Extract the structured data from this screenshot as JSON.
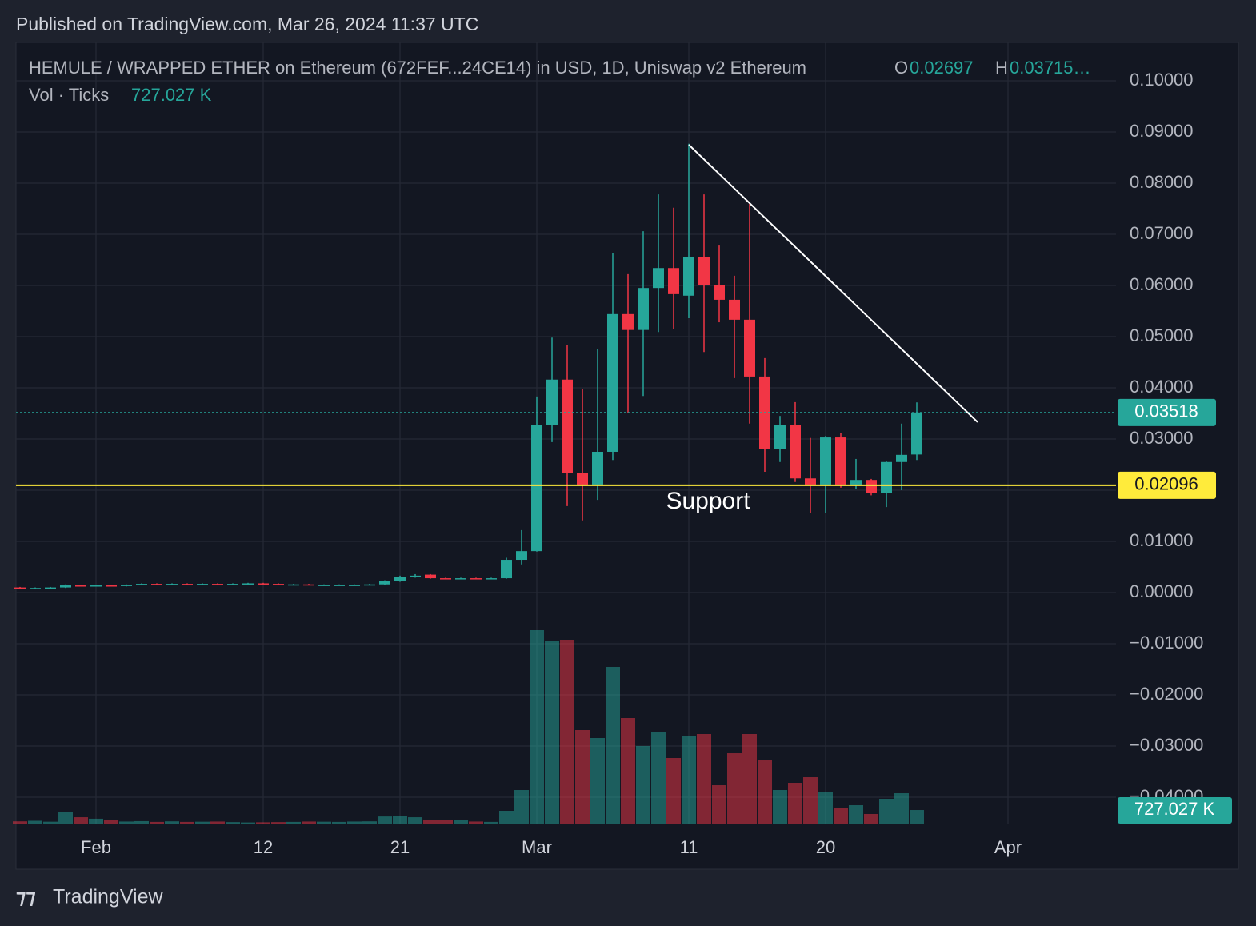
{
  "header": {
    "published": "Published on TradingView.com, Mar 26, 2024 11:37 UTC",
    "symbol": "HEMULE / WRAPPED ETHER on Ethereum (672FEF...24CE14) in USD, 1D, Uniswap v2 Ethereum",
    "o_key": "O",
    "o_value": "0.02697",
    "h_key": "H",
    "h_value": "0.03715…",
    "volume_key": "Vol · Ticks",
    "volume_value": "727.027 K"
  },
  "footer": {
    "brand": "TradingView"
  },
  "chart_data": {
    "type": "candlestick",
    "categories": [
      null,
      null,
      null,
      null,
      null,
      "Feb",
      null,
      null,
      null,
      null,
      null,
      null,
      null,
      null,
      null,
      null,
      "12",
      null,
      null,
      null,
      null,
      null,
      null,
      null,
      null,
      "21",
      null,
      null,
      null,
      null,
      null,
      null,
      null,
      null,
      "Mar",
      null,
      null,
      null,
      null,
      null,
      null,
      null,
      null,
      null,
      "11",
      null,
      null,
      null,
      null,
      null,
      null,
      null,
      null,
      "20",
      null,
      null,
      null,
      null,
      null,
      null,
      null,
      null,
      null,
      null,
      null,
      "Apr"
    ],
    "open": [
      0.001,
      0.0009,
      0.0009,
      0.001,
      0.0014,
      0.0013,
      0.0014,
      0.0013,
      0.0015,
      0.0017,
      0.0016,
      0.0017,
      0.0016,
      0.0017,
      0.0016,
      0.0017,
      0.0018,
      0.0017,
      0.0016,
      0.0016,
      0.0015,
      0.0015,
      0.0015,
      0.0015,
      0.0016,
      0.0022,
      0.003,
      0.0035,
      0.0028,
      0.0027,
      0.0028,
      0.0027,
      0.0028,
      0.0064,
      0.0081,
      0.0327,
      0.0416,
      0.0233,
      0.0211,
      0.0275,
      0.0544,
      0.0513,
      0.0595,
      0.0634,
      0.058,
      0.0655,
      0.06,
      0.0572,
      0.0533,
      0.0422,
      0.028,
      0.0327,
      0.0223,
      0.0211,
      0.0303,
      0.0211,
      0.022,
      0.0194,
      0.0255,
      0.02697,
      null,
      null,
      null,
      null,
      null,
      null
    ],
    "high": [
      0.0011,
      0.001,
      0.0011,
      0.0016,
      0.0015,
      0.0015,
      0.0015,
      0.0016,
      0.0018,
      0.0018,
      0.0018,
      0.0018,
      0.0018,
      0.0018,
      0.0018,
      0.0019,
      0.0019,
      0.0018,
      0.0017,
      0.0017,
      0.0016,
      0.0016,
      0.0016,
      0.0017,
      0.0024,
      0.0033,
      0.0036,
      0.0036,
      0.0029,
      0.0029,
      0.0029,
      0.0029,
      0.0068,
      0.0122,
      0.0383,
      0.0498,
      0.0483,
      0.0397,
      0.0475,
      0.0663,
      0.0622,
      0.0706,
      0.0778,
      0.0752,
      0.0877,
      0.0778,
      0.0678,
      0.0619,
      0.0763,
      0.0458,
      0.0345,
      0.0372,
      0.0302,
      0.0306,
      0.0311,
      0.0261,
      0.0222,
      0.0256,
      0.033,
      0.03715,
      null,
      null,
      null,
      null,
      null,
      null
    ],
    "low": [
      0.0007,
      0.0008,
      0.0008,
      0.0009,
      0.0012,
      0.0012,
      0.0012,
      0.0012,
      0.0014,
      0.0015,
      0.0015,
      0.0015,
      0.0015,
      0.0015,
      0.0015,
      0.0016,
      0.0016,
      0.0015,
      0.0015,
      0.0014,
      0.0014,
      0.0014,
      0.0014,
      0.0014,
      0.0015,
      0.0021,
      0.0029,
      0.0027,
      0.0026,
      0.0026,
      0.0026,
      0.0026,
      0.0027,
      0.0055,
      0.008,
      0.0294,
      0.0169,
      0.0141,
      0.0181,
      0.0259,
      0.035,
      0.0384,
      0.0509,
      0.0514,
      0.0536,
      0.047,
      0.0528,
      0.0419,
      0.033,
      0.0236,
      0.0255,
      0.0216,
      0.0155,
      0.0155,
      0.0205,
      0.0202,
      0.019,
      0.0167,
      0.02,
      0.0259,
      null,
      null,
      null,
      null,
      null,
      null
    ],
    "close": [
      0.0009,
      0.0009,
      0.001,
      0.0014,
      0.0013,
      0.0014,
      0.0013,
      0.0015,
      0.0017,
      0.0016,
      0.0017,
      0.0016,
      0.0017,
      0.0016,
      0.0017,
      0.0018,
      0.0017,
      0.0016,
      0.0016,
      0.0015,
      0.0015,
      0.0015,
      0.0015,
      0.0016,
      0.0022,
      0.003,
      0.0033,
      0.0028,
      0.0027,
      0.0028,
      0.0027,
      0.0028,
      0.0064,
      0.0081,
      0.0327,
      0.0416,
      0.0233,
      0.0211,
      0.0275,
      0.0544,
      0.0513,
      0.0595,
      0.0634,
      0.0583,
      0.0655,
      0.06,
      0.0572,
      0.0533,
      0.0422,
      0.028,
      0.0327,
      0.0223,
      0.0211,
      0.0303,
      0.0211,
      0.022,
      0.0194,
      0.0255,
      0.0269,
      0.03518,
      null,
      null,
      null,
      null,
      null,
      null
    ],
    "volume": [
      120000,
      150000,
      100000,
      640000,
      340000,
      260000,
      200000,
      110000,
      130000,
      90000,
      120000,
      90000,
      100000,
      110000,
      80000,
      60000,
      70000,
      80000,
      90000,
      110000,
      100000,
      90000,
      110000,
      120000,
      380000,
      420000,
      340000,
      200000,
      180000,
      190000,
      110000,
      90000,
      685000,
      1798000,
      10358000,
      9801000,
      9844000,
      5008000,
      4580000,
      8389000,
      5650000,
      4152000,
      4922000,
      3510000,
      4708000,
      4794000,
      2054000,
      3766000,
      4794000,
      3381000,
      1798000,
      2183000,
      2482000,
      1712000,
      856000,
      984000,
      514000,
      1327000,
      1626000,
      727027,
      null,
      null,
      null,
      null,
      null,
      null
    ],
    "up_color": "#26a69a",
    "down_color": "#f23645",
    "ylim": [
      -0.04516,
      0.1075
    ],
    "yticks": [
      {
        "value": 0.1,
        "label": "0.10000"
      },
      {
        "value": 0.09,
        "label": "0.09000"
      },
      {
        "value": 0.08,
        "label": "0.08000"
      },
      {
        "value": 0.07,
        "label": "0.07000"
      },
      {
        "value": 0.06,
        "label": "0.06000"
      },
      {
        "value": 0.05,
        "label": "0.05000"
      },
      {
        "value": 0.04,
        "label": "0.04000"
      },
      {
        "value": 0.03,
        "label": "0.03000"
      },
      {
        "value": 0.02,
        "label": "0.02000"
      },
      {
        "value": 0.01,
        "label": "0.01000"
      },
      {
        "value": 0,
        "label": "0.00000"
      },
      {
        "value": -0.01,
        "label": "−0.01000"
      },
      {
        "value": -0.02,
        "label": "−0.02000"
      },
      {
        "value": -0.03,
        "label": "−0.03000"
      },
      {
        "value": -0.04,
        "label": "−0.04000"
      }
    ],
    "grid": true,
    "last_price": 0.03518,
    "support_price": 0.02096,
    "support_color": "#ffeb3b",
    "support_label": "Support",
    "trendline": {
      "start": [
        44,
        0.0875
      ],
      "end": [
        63,
        0.0333
      ]
    }
  }
}
